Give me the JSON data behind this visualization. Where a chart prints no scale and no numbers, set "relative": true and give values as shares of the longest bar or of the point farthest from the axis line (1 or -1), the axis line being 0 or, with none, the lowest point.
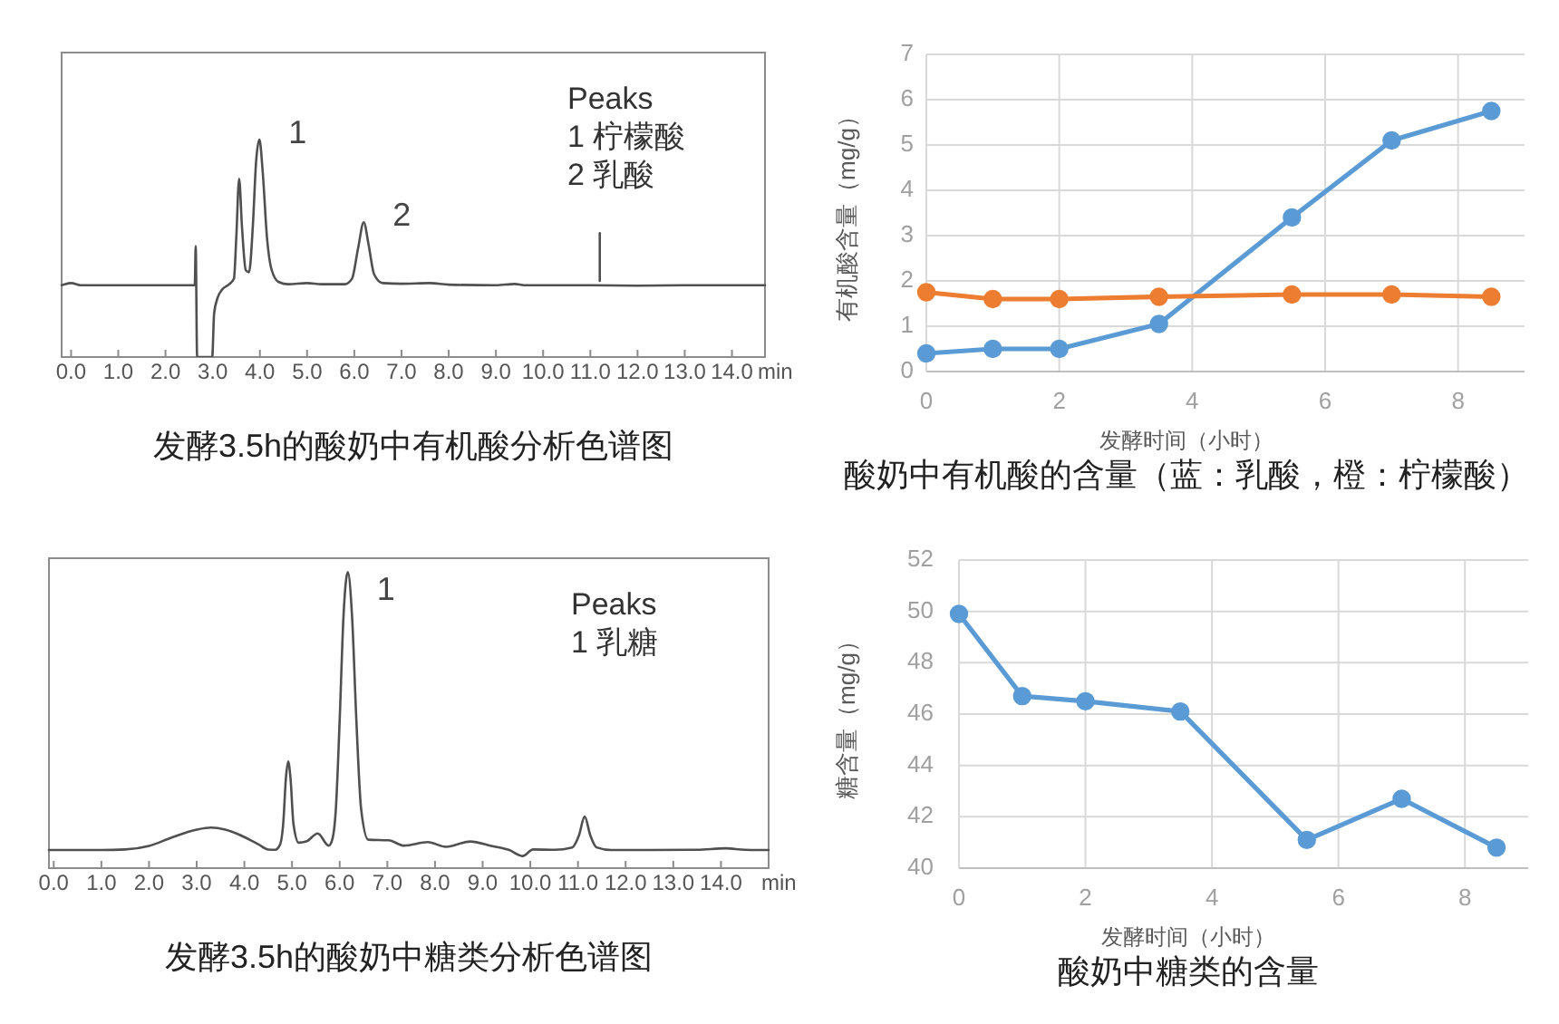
{
  "chart_data": [
    {
      "type": "line",
      "title": "发酵3.5h的酸奶中有机酸分析色谱图",
      "xlabel": "min",
      "relative": true,
      "tick_labels": "x",
      "xlim": [
        -0.2,
        14.7
      ],
      "xticks": [
        {
          "value": 0,
          "label": "0.0"
        },
        {
          "value": 1,
          "label": "1.0"
        },
        {
          "value": 2,
          "label": "2.0"
        },
        {
          "value": 3,
          "label": "3.0"
        },
        {
          "value": 4,
          "label": "4.0"
        },
        {
          "value": 5,
          "label": "5.0"
        },
        {
          "value": 6,
          "label": "6.0"
        },
        {
          "value": 7,
          "label": "7.0"
        },
        {
          "value": 8,
          "label": "8.0"
        },
        {
          "value": 9,
          "label": "9.0"
        },
        {
          "value": 10,
          "label": "10.0"
        },
        {
          "value": 11,
          "label": "11.0"
        },
        {
          "value": 12,
          "label": "12.0"
        },
        {
          "value": 13,
          "label": "13.0"
        },
        {
          "value": 14,
          "label": "14.0"
        }
      ],
      "series": [
        {
          "color": "#505050",
          "x": [
            -0.2,
            0,
            0.2,
            1,
            2,
            2.55,
            2.62,
            2.64,
            2.67,
            2.99,
            3.03,
            3.1,
            3.2,
            3.35,
            3.45,
            3.5,
            3.56,
            3.62,
            3.7,
            3.77,
            3.85,
            3.92,
            3.99,
            4.06,
            4.15,
            4.25,
            4.4,
            4.6,
            5,
            5.3,
            5.8,
            5.95,
            6.08,
            6.2,
            6.3,
            6.42,
            6.6,
            7,
            7.6,
            8,
            9,
            9.4,
            9.6,
            10,
            11,
            12,
            13,
            14,
            14.7
          ],
          "values": [
            0.33,
            0.34,
            0.33,
            0.33,
            0.33,
            0.33,
            0.33,
            0.51,
            0,
            0,
            0.2,
            0.27,
            0.31,
            0.335,
            0.36,
            0.55,
            0.82,
            0.6,
            0.4,
            0.39,
            0.6,
            0.9,
            1,
            0.85,
            0.55,
            0.4,
            0.345,
            0.335,
            0.34,
            0.335,
            0.335,
            0.36,
            0.5,
            0.62,
            0.52,
            0.38,
            0.34,
            0.337,
            0.34,
            0.333,
            0.33,
            0.336,
            0.33,
            0.33,
            0.33,
            0.328,
            0.33,
            0.33,
            0.33
          ]
        },
        {
          "color": "#505050",
          "x": [
            11.2,
            11.2
          ],
          "values": [
            0.35,
            0.57
          ]
        }
      ],
      "annotations": [
        {
          "text": "1",
          "x": 3.99,
          "y": 1
        },
        {
          "text": "2",
          "x": 6.2,
          "y": 0.62
        },
        "Peaks",
        "1 柠檬酸",
        "2 乳酸"
      ]
    },
    {
      "type": "line",
      "title": "酸奶中有机酸的含量（蓝：乳酸，橙：柠檬酸）",
      "xlabel": "发酵时间（小时）",
      "ylabel": "有机酸含量（mg/g）",
      "x": [
        0,
        1,
        2,
        3.5,
        5.5,
        7,
        8.5
      ],
      "xlim": [
        0,
        9
      ],
      "xticks": [
        0,
        2,
        4,
        6,
        8
      ],
      "ylim": [
        0,
        7
      ],
      "yticks": [
        0,
        1,
        2,
        3,
        4,
        5,
        6,
        7
      ],
      "grid": true,
      "marker": "circle",
      "series": [
        {
          "color": "#5b9bd5",
          "values": [
            0.4,
            0.5,
            0.5,
            1.05,
            3.4,
            5.1,
            5.75
          ]
        },
        {
          "color": "#ed7d31",
          "values": [
            1.75,
            1.6,
            1.6,
            1.65,
            1.7,
            1.7,
            1.65
          ]
        }
      ]
    },
    {
      "type": "line",
      "title": "发酵3.5h的酸奶中糖类分析色谱图",
      "xlabel": "min",
      "relative": true,
      "tick_labels": "x",
      "xlim": [
        -0.1,
        15
      ],
      "xticks": [
        {
          "value": 0,
          "label": "0.0"
        },
        {
          "value": 1,
          "label": "1.0"
        },
        {
          "value": 2,
          "label": "2.0"
        },
        {
          "value": 3,
          "label": "3.0"
        },
        {
          "value": 4,
          "label": "4.0"
        },
        {
          "value": 5,
          "label": "5.0"
        },
        {
          "value": 6,
          "label": "6.0"
        },
        {
          "value": 7,
          "label": "7.0"
        },
        {
          "value": 8,
          "label": "8.0"
        },
        {
          "value": 9,
          "label": "9.0"
        },
        {
          "value": 10,
          "label": "10.0"
        },
        {
          "value": 11,
          "label": "11.0"
        },
        {
          "value": 12,
          "label": "12.0"
        },
        {
          "value": 13,
          "label": "13.0"
        },
        {
          "value": 14,
          "label": "14.0"
        }
      ],
      "series": [
        {
          "color": "#505050",
          "x": [
            -0.1,
            0.5,
            1,
            1.5,
            2,
            2.5,
            3,
            3.3,
            3.6,
            4,
            4.3,
            4.5,
            4.65,
            4.75,
            4.82,
            4.87,
            4.92,
            4.97,
            5.03,
            5.14,
            5.3,
            5.54,
            5.77,
            5.85,
            5.92,
            6,
            6.08,
            6.17,
            6.26,
            6.35,
            6.45,
            6.6,
            7.03,
            7.35,
            7.85,
            8.23,
            8.74,
            9.18,
            9.56,
            9.84,
            10.06,
            10.5,
            10.88,
            11.02,
            11.14,
            11.26,
            11.39,
            11.7,
            12.5,
            13.5,
            14.1,
            14.5,
            15
          ],
          "values": [
            0.061,
            0.061,
            0.061,
            0.063,
            0.075,
            0.105,
            0.13,
            0.137,
            0.13,
            0.105,
            0.08,
            0.063,
            0.062,
            0.08,
            0.16,
            0.3,
            0.36,
            0.3,
            0.15,
            0.086,
            0.09,
            0.117,
            0.076,
            0.1,
            0.2,
            0.5,
            0.85,
            1,
            0.85,
            0.5,
            0.2,
            0.096,
            0.094,
            0.076,
            0.088,
            0.072,
            0.09,
            0.075,
            0.061,
            0.041,
            0.063,
            0.062,
            0.07,
            0.11,
            0.174,
            0.11,
            0.07,
            0.061,
            0.061,
            0.062,
            0.067,
            0.062,
            0.061
          ]
        }
      ],
      "annotations": [
        {
          "text": "1",
          "x": 6.17,
          "y": 1
        },
        "Peaks",
        "1 乳糖"
      ]
    },
    {
      "type": "line",
      "title": "酸奶中糖类的含量",
      "xlabel": "发酵时间（小时）",
      "ylabel": "糖含量（mg/g）",
      "x": [
        0,
        1,
        2,
        3.5,
        5.5,
        7,
        8.5
      ],
      "xlim": [
        0,
        9
      ],
      "xticks": [
        0,
        2,
        4,
        6,
        8
      ],
      "ylim": [
        40,
        52
      ],
      "yticks": [
        40,
        42,
        44,
        46,
        48,
        50,
        52
      ],
      "grid": true,
      "marker": "circle",
      "series": [
        {
          "color": "#5b9bd5",
          "values": [
            49.9,
            46.7,
            46.5,
            46.1,
            41.1,
            42.7,
            40.8
          ]
        }
      ]
    }
  ]
}
